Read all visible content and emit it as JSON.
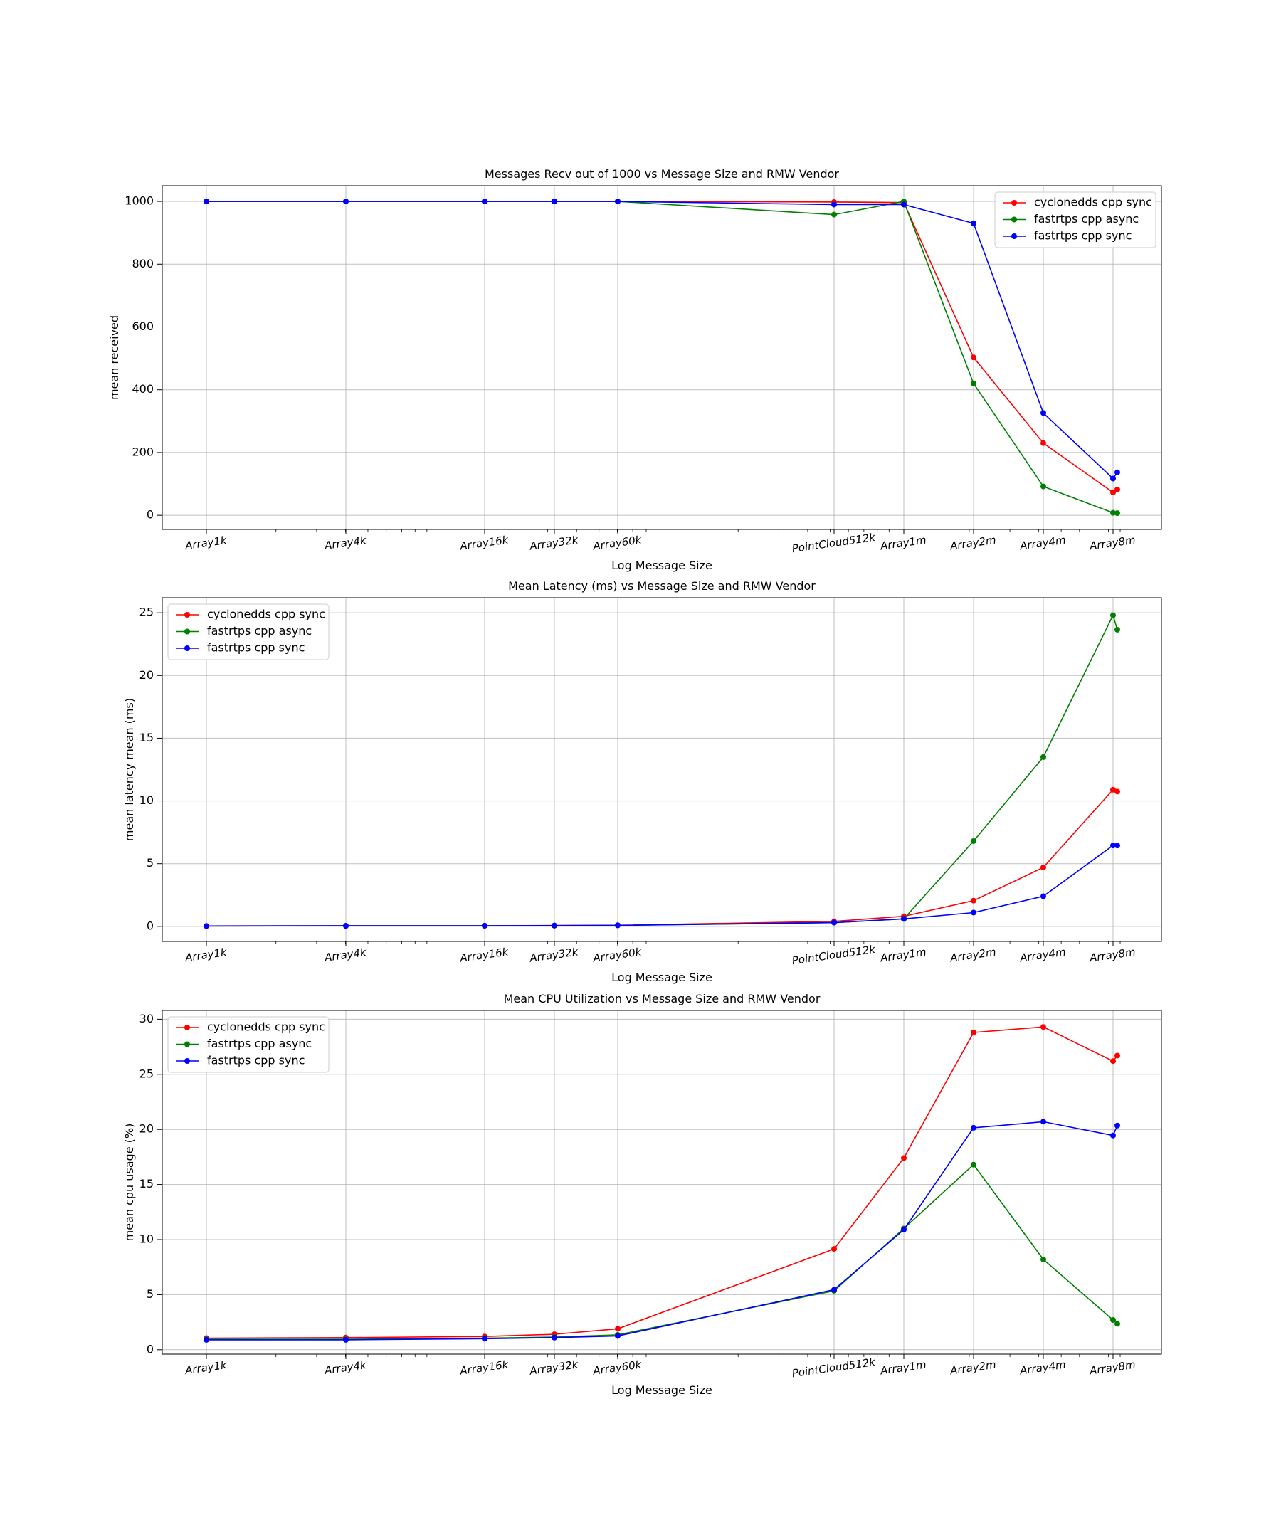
{
  "chart_data": [
    {
      "type": "line",
      "title": "Messages Recv out of 1000 vs Message Size and RMW Vendor",
      "xlabel": "Log Message Size",
      "ylabel": "mean received",
      "xscale": "log",
      "categories": [
        "Array1k",
        "Array4k",
        "Array16k",
        "Array32k",
        "Array60k",
        "PointCloud512k",
        "Array1m",
        "Array2m",
        "Array4m",
        "Array8m"
      ],
      "yticks": [
        0,
        200,
        400,
        600,
        800,
        1000
      ],
      "ylim": [
        -45,
        1050
      ],
      "grid": true,
      "legend_position": "top-right",
      "series": [
        {
          "name": "cyclonedds cpp sync",
          "color": "#ff0000",
          "x": [
            "Array1k",
            "Array4k",
            "Array16k",
            "Array32k",
            "Array60k",
            "PointCloud512k",
            "Array1m",
            "Array2m",
            "Array4m",
            "Array8m",
            "Array8m"
          ],
          "values": [
            1000,
            1000,
            1000,
            1000,
            1000,
            998,
            996,
            503,
            230,
            73,
            82
          ]
        },
        {
          "name": "fastrtps cpp async",
          "color": "#008000",
          "x": [
            "Array1k",
            "Array4k",
            "Array16k",
            "Array32k",
            "Array60k",
            "PointCloud512k",
            "Array1m",
            "Array2m",
            "Array4m",
            "Array8m",
            "Array8m"
          ],
          "values": [
            1000,
            1000,
            1000,
            1000,
            1000,
            958,
            1000,
            420,
            92,
            8,
            7
          ]
        },
        {
          "name": "fastrtps cpp sync",
          "color": "#0000ff",
          "x": [
            "Array1k",
            "Array4k",
            "Array16k",
            "Array32k",
            "Array60k",
            "PointCloud512k",
            "Array1m",
            "Array2m",
            "Array4m",
            "Array8m",
            "Array8m"
          ],
          "values": [
            1000,
            1000,
            1000,
            1000,
            1000,
            990,
            990,
            930,
            326,
            117,
            137
          ]
        }
      ]
    },
    {
      "type": "line",
      "title": "Mean Latency (ms) vs Message Size and RMW Vendor",
      "xlabel": "Log Message Size",
      "ylabel": "mean latency mean (ms)",
      "xscale": "log",
      "categories": [
        "Array1k",
        "Array4k",
        "Array16k",
        "Array32k",
        "Array60k",
        "PointCloud512k",
        "Array1m",
        "Array2m",
        "Array4m",
        "Array8m"
      ],
      "yticks": [
        0,
        5,
        10,
        15,
        20,
        25
      ],
      "ylim": [
        -1.2,
        26.2
      ],
      "grid": true,
      "legend_position": "top-left",
      "series": [
        {
          "name": "cyclonedds cpp sync",
          "color": "#ff0000",
          "x": [
            "Array1k",
            "Array4k",
            "Array16k",
            "Array32k",
            "Array60k",
            "PointCloud512k",
            "Array1m",
            "Array2m",
            "Array4m",
            "Array8m",
            "Array8m"
          ],
          "values": [
            0.03,
            0.04,
            0.05,
            0.07,
            0.09,
            0.4,
            0.8,
            2.05,
            4.7,
            10.9,
            10.75
          ]
        },
        {
          "name": "fastrtps cpp async",
          "color": "#008000",
          "x": [
            "Array1k",
            "Array4k",
            "Array16k",
            "Array32k",
            "Array60k",
            "PointCloud512k",
            "Array1m",
            "Array2m",
            "Array4m",
            "Array8m",
            "Array8m"
          ],
          "values": [
            0.03,
            0.04,
            0.05,
            0.06,
            0.08,
            0.3,
            0.6,
            6.8,
            13.5,
            24.8,
            23.65
          ]
        },
        {
          "name": "fastrtps cpp sync",
          "color": "#0000ff",
          "x": [
            "Array1k",
            "Array4k",
            "Array16k",
            "Array32k",
            "Array60k",
            "PointCloud512k",
            "Array1m",
            "Array2m",
            "Array4m",
            "Array8m",
            "Array8m"
          ],
          "values": [
            0.03,
            0.04,
            0.05,
            0.06,
            0.08,
            0.3,
            0.6,
            1.1,
            2.4,
            6.45,
            6.45
          ]
        }
      ]
    },
    {
      "type": "line",
      "title": "Mean CPU Utilization vs Message Size and RMW Vendor",
      "xlabel": "Log Message Size",
      "ylabel": "mean cpu usage (%)",
      "xscale": "log",
      "categories": [
        "Array1k",
        "Array4k",
        "Array16k",
        "Array32k",
        "Array60k",
        "PointCloud512k",
        "Array1m",
        "Array2m",
        "Array4m",
        "Array8m"
      ],
      "yticks": [
        0,
        5,
        10,
        15,
        20,
        25,
        30
      ],
      "ylim": [
        -0.4,
        30.8
      ],
      "grid": true,
      "legend_position": "top-left",
      "series": [
        {
          "name": "cyclonedds cpp sync",
          "color": "#ff0000",
          "x": [
            "Array1k",
            "Array4k",
            "Array16k",
            "Array32k",
            "Array60k",
            "PointCloud512k",
            "Array1m",
            "Array2m",
            "Array4m",
            "Array8m",
            "Array8m"
          ],
          "values": [
            1.05,
            1.1,
            1.2,
            1.4,
            1.9,
            9.15,
            17.4,
            28.8,
            29.3,
            26.2,
            26.7
          ]
        },
        {
          "name": "fastrtps cpp async",
          "color": "#008000",
          "x": [
            "Array1k",
            "Array4k",
            "Array16k",
            "Array32k",
            "Array60k",
            "PointCloud512k",
            "Array1m",
            "Array2m",
            "Array4m",
            "Array8m",
            "Array8m"
          ],
          "values": [
            0.95,
            0.95,
            1.05,
            1.15,
            1.35,
            5.35,
            11.0,
            16.8,
            8.2,
            2.7,
            2.35
          ]
        },
        {
          "name": "fastrtps cpp sync",
          "color": "#0000ff",
          "x": [
            "Array1k",
            "Array4k",
            "Array16k",
            "Array32k",
            "Array60k",
            "PointCloud512k",
            "Array1m",
            "Array2m",
            "Array4m",
            "Array8m",
            "Array8m"
          ],
          "values": [
            0.9,
            0.9,
            1.0,
            1.1,
            1.25,
            5.45,
            10.9,
            20.15,
            20.7,
            19.45,
            20.35
          ]
        }
      ]
    }
  ]
}
